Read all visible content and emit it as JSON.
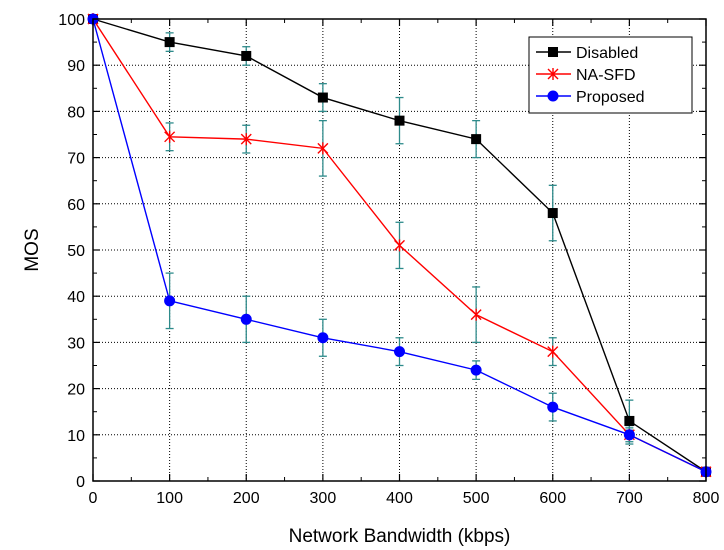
{
  "chart_data": {
    "type": "line",
    "title": "",
    "xlabel": "Network Bandwidth (kbps)",
    "ylabel": "MOS",
    "xlim": [
      0,
      800
    ],
    "ylim": [
      0,
      100
    ],
    "xticks": [
      0,
      100,
      200,
      300,
      400,
      500,
      600,
      700,
      800
    ],
    "yticks": [
      0,
      10,
      20,
      30,
      40,
      50,
      60,
      70,
      80,
      90,
      100
    ],
    "grid": true,
    "legend_position": "top-right",
    "error_bar_color": "#2e8b8b",
    "x": [
      0,
      100,
      200,
      300,
      400,
      500,
      600,
      700,
      800
    ],
    "series": [
      {
        "name": "Disabled",
        "color": "#000000",
        "marker": "square",
        "values": [
          100,
          95,
          92,
          83,
          78,
          74,
          58,
          13,
          2
        ],
        "err_low": [
          null,
          93,
          90,
          80,
          73,
          70,
          52,
          11,
          null
        ],
        "err_high": [
          null,
          97,
          94,
          86,
          83,
          78,
          64,
          17.5,
          null
        ]
      },
      {
        "name": "NA-SFD",
        "color": "#ff0000",
        "marker": "x",
        "values": [
          100,
          74.5,
          74,
          72,
          51,
          36,
          28,
          10,
          2
        ],
        "err_low": [
          null,
          71.5,
          71,
          66,
          46,
          30,
          25,
          8,
          null
        ],
        "err_high": [
          null,
          77.5,
          77,
          78,
          56,
          42,
          31,
          12,
          null
        ]
      },
      {
        "name": "Proposed",
        "color": "#0000ff",
        "marker": "circle",
        "values": [
          100,
          39,
          35,
          31,
          28,
          24,
          16,
          10,
          2
        ],
        "err_low": [
          null,
          33,
          30,
          27,
          25,
          22,
          13,
          8.5,
          null
        ],
        "err_high": [
          null,
          45,
          40,
          35,
          31,
          26,
          19,
          11.5,
          null
        ]
      }
    ]
  }
}
